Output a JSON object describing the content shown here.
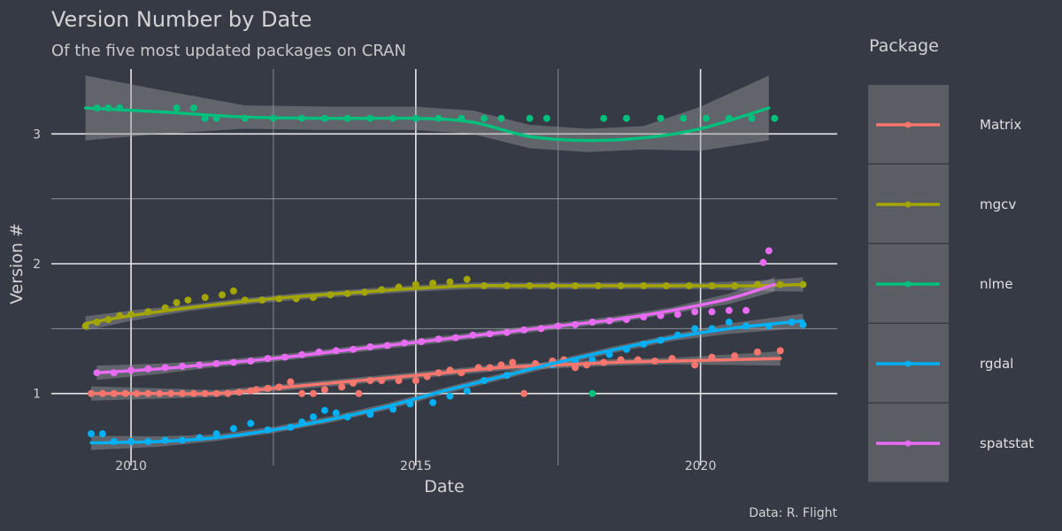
{
  "chart_data": {
    "type": "scatter",
    "title": "Version Number by Date",
    "subtitle": "Of the five most updated packages on CRAN",
    "xlabel": "Date",
    "ylabel": "Version #",
    "caption": "Data: R. Flight",
    "legend_title": "Package",
    "legend_position": "right",
    "grid": true,
    "xlim": [
      2008.6,
      2022.4
    ],
    "ylim": [
      0.5,
      3.5
    ],
    "x_ticks": [
      2010,
      2015,
      2020
    ],
    "x_tick_labels": [
      "2010",
      "2015",
      "2020"
    ],
    "y_ticks": [
      1,
      2,
      3
    ],
    "y_tick_labels": [
      "1",
      "2",
      "3"
    ],
    "series": [
      {
        "name": "Matrix",
        "color": "#f8766d",
        "points": [
          [
            2009.3,
            1.0
          ],
          [
            2009.5,
            1.0
          ],
          [
            2009.7,
            1.0
          ],
          [
            2009.9,
            1.0
          ],
          [
            2010.1,
            1.0
          ],
          [
            2010.3,
            1.0
          ],
          [
            2010.5,
            1.0
          ],
          [
            2010.7,
            1.0
          ],
          [
            2010.9,
            1.0
          ],
          [
            2011.1,
            1.0
          ],
          [
            2011.3,
            1.0
          ],
          [
            2011.5,
            1.0
          ],
          [
            2011.7,
            1.0
          ],
          [
            2011.9,
            1.01
          ],
          [
            2012.1,
            1.02
          ],
          [
            2012.2,
            1.03
          ],
          [
            2012.4,
            1.04
          ],
          [
            2012.6,
            1.05
          ],
          [
            2012.8,
            1.09
          ],
          [
            2013.0,
            1.0
          ],
          [
            2013.2,
            1.0
          ],
          [
            2013.4,
            1.03
          ],
          [
            2013.7,
            1.05
          ],
          [
            2013.9,
            1.08
          ],
          [
            2014.0,
            1.0
          ],
          [
            2014.2,
            1.1
          ],
          [
            2014.4,
            1.1
          ],
          [
            2014.7,
            1.1
          ],
          [
            2015.0,
            1.1
          ],
          [
            2015.2,
            1.13
          ],
          [
            2015.4,
            1.16
          ],
          [
            2015.6,
            1.18
          ],
          [
            2015.8,
            1.16
          ],
          [
            2016.1,
            1.2
          ],
          [
            2016.3,
            1.2
          ],
          [
            2016.5,
            1.22
          ],
          [
            2016.7,
            1.24
          ],
          [
            2016.9,
            1.0
          ],
          [
            2017.1,
            1.23
          ],
          [
            2017.4,
            1.25
          ],
          [
            2017.6,
            1.26
          ],
          [
            2017.8,
            1.2
          ],
          [
            2018.0,
            1.22
          ],
          [
            2018.3,
            1.24
          ],
          [
            2018.6,
            1.26
          ],
          [
            2018.9,
            1.26
          ],
          [
            2019.2,
            1.25
          ],
          [
            2019.5,
            1.27
          ],
          [
            2019.9,
            1.22
          ],
          [
            2020.2,
            1.28
          ],
          [
            2020.6,
            1.29
          ],
          [
            2021.0,
            1.32
          ],
          [
            2021.4,
            1.33
          ]
        ],
        "fit": [
          [
            2009.3,
            1.0
          ],
          [
            2010.5,
            1.0
          ],
          [
            2011.5,
            1.0
          ],
          [
            2012.5,
            1.04
          ],
          [
            2013.5,
            1.08
          ],
          [
            2014.5,
            1.12
          ],
          [
            2015.5,
            1.16
          ],
          [
            2016.5,
            1.2
          ],
          [
            2017.5,
            1.22
          ],
          [
            2018.5,
            1.24
          ],
          [
            2019.5,
            1.25
          ],
          [
            2020.5,
            1.26
          ],
          [
            2021.4,
            1.27
          ]
        ]
      },
      {
        "name": "mgcv",
        "color": "#a3a500",
        "points": [
          [
            2009.2,
            1.52
          ],
          [
            2009.4,
            1.55
          ],
          [
            2009.6,
            1.57
          ],
          [
            2009.8,
            1.6
          ],
          [
            2010.0,
            1.61
          ],
          [
            2010.3,
            1.63
          ],
          [
            2010.6,
            1.66
          ],
          [
            2010.8,
            1.7
          ],
          [
            2011.0,
            1.72
          ],
          [
            2011.3,
            1.74
          ],
          [
            2011.6,
            1.76
          ],
          [
            2011.8,
            1.79
          ],
          [
            2012.0,
            1.72
          ],
          [
            2012.3,
            1.72
          ],
          [
            2012.6,
            1.73
          ],
          [
            2012.9,
            1.73
          ],
          [
            2013.2,
            1.74
          ],
          [
            2013.5,
            1.76
          ],
          [
            2013.8,
            1.77
          ],
          [
            2014.1,
            1.78
          ],
          [
            2014.4,
            1.8
          ],
          [
            2014.7,
            1.82
          ],
          [
            2015.0,
            1.84
          ],
          [
            2015.3,
            1.85
          ],
          [
            2015.6,
            1.86
          ],
          [
            2015.9,
            1.88
          ],
          [
            2016.2,
            1.83
          ],
          [
            2016.6,
            1.83
          ],
          [
            2017.0,
            1.83
          ],
          [
            2017.4,
            1.83
          ],
          [
            2017.8,
            1.83
          ],
          [
            2018.2,
            1.83
          ],
          [
            2018.6,
            1.83
          ],
          [
            2019.0,
            1.83
          ],
          [
            2019.4,
            1.83
          ],
          [
            2019.8,
            1.83
          ],
          [
            2020.2,
            1.83
          ],
          [
            2020.6,
            1.83
          ],
          [
            2021.0,
            1.84
          ],
          [
            2021.4,
            1.84
          ],
          [
            2021.8,
            1.84
          ]
        ],
        "fit": [
          [
            2009.2,
            1.54
          ],
          [
            2010.0,
            1.6
          ],
          [
            2011.0,
            1.66
          ],
          [
            2012.0,
            1.71
          ],
          [
            2013.0,
            1.75
          ],
          [
            2014.0,
            1.78
          ],
          [
            2015.0,
            1.81
          ],
          [
            2016.0,
            1.83
          ],
          [
            2017.0,
            1.83
          ],
          [
            2018.0,
            1.83
          ],
          [
            2019.0,
            1.83
          ],
          [
            2020.0,
            1.83
          ],
          [
            2021.0,
            1.83
          ],
          [
            2021.8,
            1.84
          ]
        ]
      },
      {
        "name": "nlme",
        "color": "#00bf7d",
        "points": [
          [
            2009.4,
            3.2
          ],
          [
            2009.6,
            3.2
          ],
          [
            2009.8,
            3.2
          ],
          [
            2010.8,
            3.2
          ],
          [
            2011.1,
            3.2
          ],
          [
            2011.3,
            3.12
          ],
          [
            2011.5,
            3.12
          ],
          [
            2012.0,
            3.12
          ],
          [
            2012.5,
            3.12
          ],
          [
            2013.0,
            3.12
          ],
          [
            2013.4,
            3.12
          ],
          [
            2013.8,
            3.12
          ],
          [
            2014.2,
            3.12
          ],
          [
            2014.6,
            3.12
          ],
          [
            2015.0,
            3.12
          ],
          [
            2015.4,
            3.12
          ],
          [
            2015.8,
            3.12
          ],
          [
            2016.2,
            3.12
          ],
          [
            2016.5,
            3.12
          ],
          [
            2017.0,
            3.12
          ],
          [
            2017.3,
            3.12
          ],
          [
            2018.3,
            3.12
          ],
          [
            2018.7,
            3.12
          ],
          [
            2019.3,
            3.12
          ],
          [
            2019.7,
            3.12
          ],
          [
            2020.1,
            3.12
          ],
          [
            2020.5,
            3.12
          ],
          [
            2020.9,
            3.12
          ],
          [
            2021.3,
            3.12
          ],
          [
            2018.1,
            1.0
          ]
        ],
        "fit": [
          [
            2009.2,
            3.2
          ],
          [
            2010.5,
            3.17
          ],
          [
            2012.0,
            3.13
          ],
          [
            2013.5,
            3.12
          ],
          [
            2015.0,
            3.12
          ],
          [
            2016.0,
            3.09
          ],
          [
            2017.0,
            2.98
          ],
          [
            2018.0,
            2.95
          ],
          [
            2019.0,
            2.97
          ],
          [
            2020.0,
            3.04
          ],
          [
            2021.2,
            3.2
          ]
        ]
      },
      {
        "name": "rgdal",
        "color": "#00b0f6",
        "points": [
          [
            2009.3,
            0.69
          ],
          [
            2009.5,
            0.69
          ],
          [
            2009.7,
            0.63
          ],
          [
            2010.0,
            0.63
          ],
          [
            2010.3,
            0.63
          ],
          [
            2010.6,
            0.64
          ],
          [
            2010.9,
            0.64
          ],
          [
            2011.2,
            0.66
          ],
          [
            2011.5,
            0.69
          ],
          [
            2011.8,
            0.73
          ],
          [
            2012.1,
            0.77
          ],
          [
            2012.4,
            0.72
          ],
          [
            2012.8,
            0.74
          ],
          [
            2013.0,
            0.78
          ],
          [
            2013.2,
            0.82
          ],
          [
            2013.4,
            0.87
          ],
          [
            2013.6,
            0.85
          ],
          [
            2013.8,
            0.82
          ],
          [
            2014.2,
            0.84
          ],
          [
            2014.6,
            0.88
          ],
          [
            2014.9,
            0.92
          ],
          [
            2015.3,
            0.93
          ],
          [
            2015.6,
            0.98
          ],
          [
            2015.9,
            1.02
          ],
          [
            2016.2,
            1.1
          ],
          [
            2016.6,
            1.14
          ],
          [
            2017.0,
            1.2
          ],
          [
            2017.4,
            1.22
          ],
          [
            2017.8,
            1.25
          ],
          [
            2018.1,
            1.26
          ],
          [
            2018.4,
            1.3
          ],
          [
            2018.7,
            1.34
          ],
          [
            2019.0,
            1.38
          ],
          [
            2019.3,
            1.41
          ],
          [
            2019.6,
            1.45
          ],
          [
            2019.9,
            1.5
          ],
          [
            2020.2,
            1.5
          ],
          [
            2020.5,
            1.55
          ],
          [
            2020.8,
            1.52
          ],
          [
            2021.2,
            1.52
          ],
          [
            2021.6,
            1.55
          ],
          [
            2021.8,
            1.53
          ]
        ],
        "fit": [
          [
            2009.3,
            0.62
          ],
          [
            2010.5,
            0.63
          ],
          [
            2011.5,
            0.66
          ],
          [
            2012.5,
            0.72
          ],
          [
            2013.5,
            0.8
          ],
          [
            2014.5,
            0.9
          ],
          [
            2015.5,
            1.02
          ],
          [
            2016.5,
            1.13
          ],
          [
            2017.5,
            1.24
          ],
          [
            2018.5,
            1.34
          ],
          [
            2019.5,
            1.43
          ],
          [
            2020.5,
            1.5
          ],
          [
            2021.8,
            1.56
          ]
        ]
      },
      {
        "name": "spatstat",
        "color": "#e76bf3",
        "points": [
          [
            2009.4,
            1.16
          ],
          [
            2009.7,
            1.16
          ],
          [
            2010.0,
            1.18
          ],
          [
            2010.3,
            1.19
          ],
          [
            2010.6,
            1.2
          ],
          [
            2010.9,
            1.21
          ],
          [
            2011.2,
            1.22
          ],
          [
            2011.5,
            1.23
          ],
          [
            2011.8,
            1.24
          ],
          [
            2012.1,
            1.25
          ],
          [
            2012.4,
            1.27
          ],
          [
            2012.7,
            1.28
          ],
          [
            2013.0,
            1.3
          ],
          [
            2013.3,
            1.32
          ],
          [
            2013.6,
            1.33
          ],
          [
            2013.9,
            1.34
          ],
          [
            2014.2,
            1.36
          ],
          [
            2014.5,
            1.37
          ],
          [
            2014.8,
            1.39
          ],
          [
            2015.1,
            1.4
          ],
          [
            2015.4,
            1.42
          ],
          [
            2015.7,
            1.43
          ],
          [
            2016.0,
            1.45
          ],
          [
            2016.3,
            1.46
          ],
          [
            2016.6,
            1.47
          ],
          [
            2016.9,
            1.49
          ],
          [
            2017.2,
            1.5
          ],
          [
            2017.5,
            1.52
          ],
          [
            2017.8,
            1.53
          ],
          [
            2018.1,
            1.55
          ],
          [
            2018.4,
            1.56
          ],
          [
            2018.7,
            1.57
          ],
          [
            2019.0,
            1.59
          ],
          [
            2019.3,
            1.6
          ],
          [
            2019.6,
            1.61
          ],
          [
            2019.9,
            1.63
          ],
          [
            2020.2,
            1.63
          ],
          [
            2020.5,
            1.64
          ],
          [
            2020.8,
            1.64
          ],
          [
            2021.1,
            2.01
          ],
          [
            2021.2,
            2.1
          ]
        ],
        "fit": [
          [
            2009.4,
            1.16
          ],
          [
            2010.5,
            1.19
          ],
          [
            2011.5,
            1.23
          ],
          [
            2012.5,
            1.27
          ],
          [
            2013.5,
            1.32
          ],
          [
            2014.5,
            1.37
          ],
          [
            2015.5,
            1.42
          ],
          [
            2016.5,
            1.47
          ],
          [
            2017.5,
            1.52
          ],
          [
            2018.5,
            1.57
          ],
          [
            2019.5,
            1.64
          ],
          [
            2020.5,
            1.73
          ],
          [
            2021.3,
            1.84
          ]
        ]
      }
    ]
  }
}
